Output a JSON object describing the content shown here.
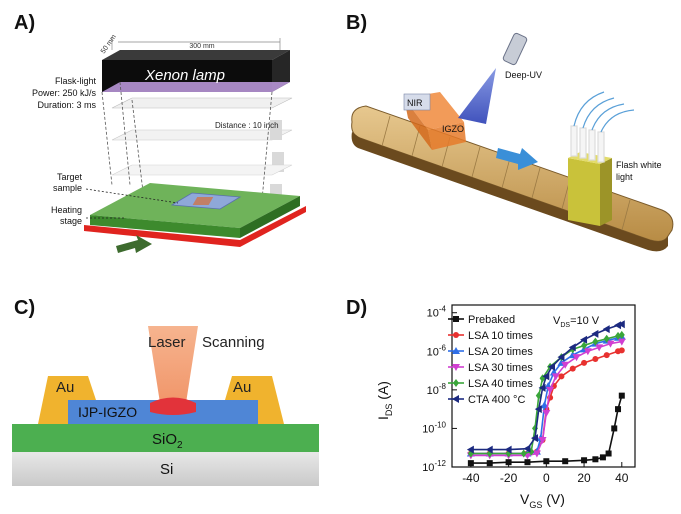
{
  "panels": {
    "a": "A)",
    "b": "B)",
    "c": "C)",
    "d": "D)"
  },
  "panel_a": {
    "lamp": "Xenon lamp",
    "dim_depth": "50 mm",
    "dim_width": "300 mm",
    "flask_1": "Flask-light",
    "flask_2": "Power: 250 kJ/s",
    "flask_3": "Duration: 3 ms",
    "distance": "Distance : 10 inch",
    "target_1": "Target",
    "target_2": "sample",
    "heating_1": "Heating",
    "heating_2": "stage"
  },
  "panel_b": {
    "nir": "NIR",
    "igzo": "IGZO",
    "deep_uv": "Deep-UV",
    "flash_1": "Flash white",
    "flash_2": "light"
  },
  "panel_c": {
    "laser": "Laser",
    "scanning": "Scanning",
    "au_left": "Au",
    "au_right": "Au",
    "ijp": "IJP-IGZO",
    "sio2": "SiO",
    "sio2_sub": "2",
    "si": "Si"
  },
  "chart_data": {
    "type": "line",
    "annotation": "V",
    "annotation_sub": "DS",
    "annotation_value": "=10 V",
    "xlabel": "V",
    "xlabel_sub": "GS",
    "xlabel_unit": " (V)",
    "ylabel": "I",
    "ylabel_sub": "DS",
    "ylabel_unit": " (A)",
    "x_ticks": [
      "-40",
      "-20",
      "0",
      "20",
      "40"
    ],
    "y_ticks": [
      {
        "base": "10",
        "exp": "-4"
      },
      {
        "base": "10",
        "exp": "-6"
      },
      {
        "base": "10",
        "exp": "-8"
      },
      {
        "base": "10",
        "exp": "-10"
      },
      {
        "base": "10",
        "exp": "-12"
      }
    ],
    "xlim": [
      -50,
      47
    ],
    "ylim_log10": [
      -12,
      -3.6
    ],
    "log_scale_y": true,
    "series": [
      {
        "name": "Prebaked",
        "color": "#111111",
        "marker": "square",
        "x": [
          -40,
          -30,
          -20,
          -10,
          0,
          10,
          20,
          26,
          30,
          33,
          36,
          38,
          40
        ],
        "log10_y": [
          -11.8,
          -11.8,
          -11.75,
          -11.75,
          -11.7,
          -11.7,
          -11.65,
          -11.6,
          -11.5,
          -11.3,
          -10.0,
          -9.0,
          -8.3
        ]
      },
      {
        "name": "LSA 10 times",
        "color": "#e8312f",
        "marker": "circle",
        "x": [
          -40,
          -30,
          -20,
          -10,
          -5,
          -2,
          0,
          2,
          4,
          8,
          14,
          20,
          26,
          32,
          38,
          40
        ],
        "log10_y": [
          -11.3,
          -11.3,
          -11.3,
          -11.3,
          -11.2,
          -10.6,
          -9.0,
          -8.4,
          -7.8,
          -7.3,
          -6.9,
          -6.6,
          -6.4,
          -6.2,
          -6.0,
          -5.95
        ]
      },
      {
        "name": "LSA 20 times",
        "color": "#2f6fe8",
        "marker": "triangle",
        "x": [
          -40,
          -30,
          -20,
          -10,
          -5,
          -3,
          -1,
          1,
          4,
          8,
          14,
          20,
          26,
          32,
          38,
          40
        ],
        "log10_y": [
          -11.3,
          -11.3,
          -11.3,
          -11.3,
          -11.2,
          -10.5,
          -8.8,
          -7.8,
          -7.1,
          -6.6,
          -6.2,
          -5.9,
          -5.6,
          -5.45,
          -5.3,
          -5.25
        ]
      },
      {
        "name": "LSA 30 times",
        "color": "#d13fd1",
        "marker": "triangle-down",
        "x": [
          -40,
          -30,
          -20,
          -10,
          -5,
          -2,
          0,
          2,
          5,
          10,
          16,
          22,
          28,
          34,
          40
        ],
        "log10_y": [
          -11.4,
          -11.4,
          -11.4,
          -11.4,
          -11.3,
          -10.6,
          -9.2,
          -8.0,
          -7.3,
          -6.7,
          -6.3,
          -6.0,
          -5.8,
          -5.6,
          -5.5
        ]
      },
      {
        "name": "LSA 40 times",
        "color": "#3aa63a",
        "marker": "diamond",
        "x": [
          -40,
          -30,
          -20,
          -12,
          -8,
          -6,
          -4,
          -2,
          2,
          8,
          14,
          20,
          26,
          32,
          38,
          40
        ],
        "log10_y": [
          -11.3,
          -11.3,
          -11.3,
          -11.3,
          -11.2,
          -10.0,
          -8.3,
          -7.4,
          -6.8,
          -6.3,
          -5.9,
          -5.7,
          -5.5,
          -5.35,
          -5.2,
          -5.15
        ]
      },
      {
        "name": "CTA 400 °C",
        "color": "#1c2a80",
        "marker": "triangle-left",
        "x": [
          -40,
          -30,
          -20,
          -10,
          -6,
          -4,
          -2,
          0,
          3,
          8,
          14,
          20,
          26,
          32,
          38,
          40
        ],
        "log10_y": [
          -11.1,
          -11.1,
          -11.1,
          -11.05,
          -10.5,
          -9.0,
          -7.9,
          -7.3,
          -6.8,
          -6.3,
          -5.8,
          -5.4,
          -5.1,
          -4.85,
          -4.65,
          -4.6
        ]
      }
    ]
  }
}
